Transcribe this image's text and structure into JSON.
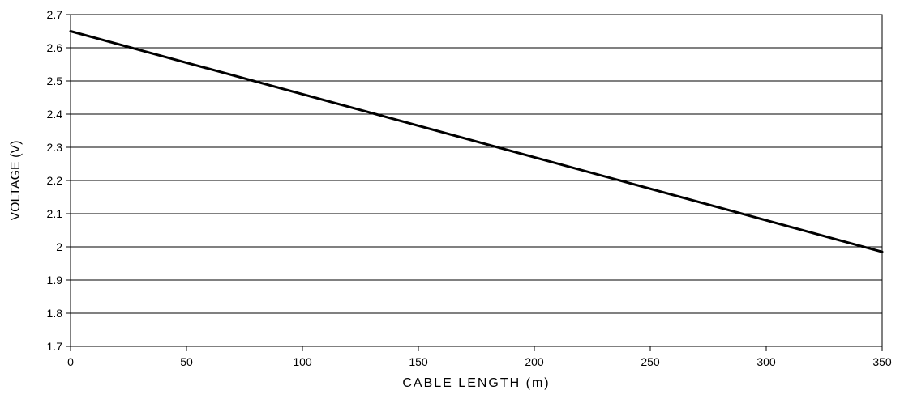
{
  "chart_data": {
    "type": "line",
    "title": "",
    "xlabel": "CABLE LENGTH (m)",
    "ylabel": "VOLTAGE (V)",
    "xlim": [
      0,
      350
    ],
    "ylim": [
      1.7,
      2.7
    ],
    "x_ticks": [
      0,
      50,
      100,
      150,
      200,
      250,
      300,
      350
    ],
    "y_ticks": [
      1.7,
      1.8,
      1.9,
      2,
      2.1,
      2.2,
      2.3,
      2.4,
      2.5,
      2.6,
      2.7
    ],
    "x_tick_labels": [
      "0",
      "50",
      "100",
      "150",
      "200",
      "250",
      "300",
      "350"
    ],
    "y_tick_labels": [
      "1.7",
      "1.8",
      "1.9",
      "2",
      "2.1",
      "2.2",
      "2.3",
      "2.4",
      "2.5",
      "2.6",
      "2.7"
    ],
    "grid": "horizontal",
    "line_color": "#000000",
    "series": [
      {
        "x": [
          0,
          350
        ],
        "y": [
          2.65,
          1.985
        ]
      }
    ]
  }
}
